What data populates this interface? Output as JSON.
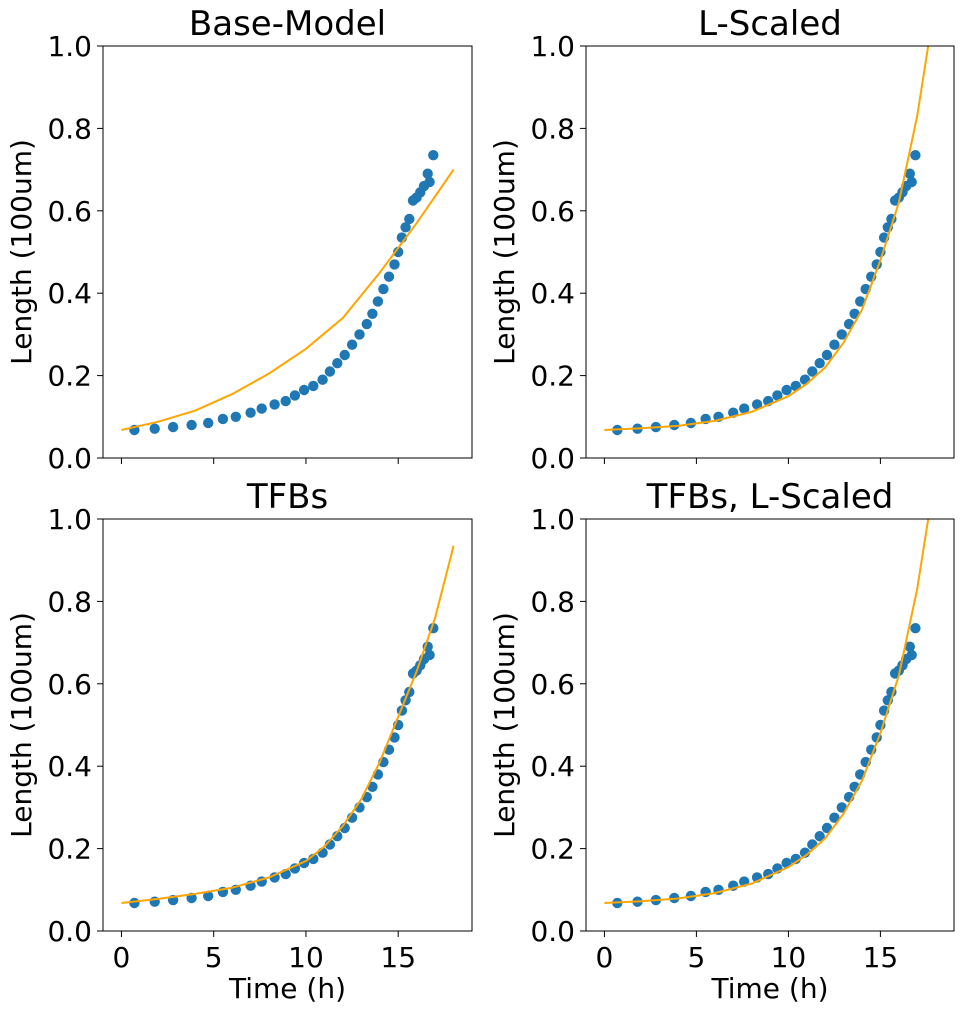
{
  "chart_data": [
    {
      "type": "scatter",
      "title": "Base-Model",
      "xlabel": "",
      "ylabel": "Length (100um)",
      "xlim": [
        -1,
        19
      ],
      "ylim": [
        0,
        1
      ],
      "xticks": [
        0,
        5,
        10,
        15
      ],
      "xtick_labels": [
        "",
        "",
        "",
        ""
      ],
      "yticks": [
        0.0,
        0.2,
        0.4,
        0.6,
        0.8,
        1.0
      ],
      "ytick_labels": [
        "0.0",
        "0.2",
        "0.4",
        "0.6",
        "0.8",
        "1.0"
      ],
      "series": [
        {
          "kind": "points",
          "color": "#1f77b4",
          "x": [
            0.7,
            1.8,
            2.8,
            3.8,
            4.7,
            5.5,
            6.2,
            7.0,
            7.6,
            8.3,
            8.9,
            9.4,
            9.9,
            10.4,
            10.9,
            11.3,
            11.7,
            12.1,
            12.5,
            12.9,
            13.3,
            13.6,
            13.9,
            14.2,
            14.5,
            14.8,
            15.0,
            15.2,
            15.4,
            15.6,
            15.8,
            16.0,
            16.2,
            16.4,
            16.6,
            16.7,
            16.9
          ],
          "y": [
            0.068,
            0.071,
            0.075,
            0.08,
            0.085,
            0.095,
            0.1,
            0.11,
            0.12,
            0.13,
            0.138,
            0.152,
            0.165,
            0.175,
            0.19,
            0.21,
            0.23,
            0.25,
            0.275,
            0.3,
            0.325,
            0.35,
            0.38,
            0.41,
            0.44,
            0.47,
            0.5,
            0.535,
            0.56,
            0.58,
            0.625,
            0.632,
            0.645,
            0.66,
            0.69,
            0.67,
            0.735
          ]
        },
        {
          "kind": "line",
          "color": "#ffa500",
          "x": [
            0,
            2,
            4,
            6,
            8,
            10,
            12,
            14,
            16,
            18
          ],
          "y": [
            0.068,
            0.088,
            0.115,
            0.155,
            0.205,
            0.265,
            0.34,
            0.45,
            0.57,
            0.7
          ]
        }
      ]
    },
    {
      "type": "scatter",
      "title": "L-Scaled",
      "xlabel": "",
      "ylabel": "Length (100um)",
      "xlim": [
        -1,
        19
      ],
      "ylim": [
        0,
        1
      ],
      "xticks": [
        0,
        5,
        10,
        15
      ],
      "xtick_labels": [
        "",
        "",
        "",
        ""
      ],
      "yticks": [
        0.0,
        0.2,
        0.4,
        0.6,
        0.8,
        1.0
      ],
      "ytick_labels": [
        "0.0",
        "0.2",
        "0.4",
        "0.6",
        "0.8",
        "1.0"
      ],
      "series": [
        {
          "kind": "points",
          "color": "#1f77b4",
          "x": [
            0.7,
            1.8,
            2.8,
            3.8,
            4.7,
            5.5,
            6.2,
            7.0,
            7.6,
            8.3,
            8.9,
            9.4,
            9.9,
            10.4,
            10.9,
            11.3,
            11.7,
            12.1,
            12.5,
            12.9,
            13.3,
            13.6,
            13.9,
            14.2,
            14.5,
            14.8,
            15.0,
            15.2,
            15.4,
            15.6,
            15.8,
            16.0,
            16.2,
            16.4,
            16.6,
            16.7,
            16.9
          ],
          "y": [
            0.068,
            0.071,
            0.075,
            0.08,
            0.085,
            0.095,
            0.1,
            0.11,
            0.12,
            0.13,
            0.138,
            0.152,
            0.165,
            0.175,
            0.19,
            0.21,
            0.23,
            0.25,
            0.275,
            0.3,
            0.325,
            0.35,
            0.38,
            0.41,
            0.44,
            0.47,
            0.5,
            0.535,
            0.56,
            0.58,
            0.625,
            0.632,
            0.645,
            0.66,
            0.69,
            0.67,
            0.735
          ]
        },
        {
          "kind": "line",
          "color": "#ffa500",
          "x": [
            0,
            2,
            4,
            6,
            8,
            10,
            11,
            12,
            13,
            14,
            15,
            16,
            17,
            17.6
          ],
          "y": [
            0.068,
            0.072,
            0.078,
            0.09,
            0.112,
            0.15,
            0.18,
            0.22,
            0.28,
            0.36,
            0.48,
            0.62,
            0.83,
            1.0
          ]
        }
      ]
    },
    {
      "type": "scatter",
      "title": "TFBs",
      "xlabel": "Time (h)",
      "ylabel": "Length (100um)",
      "xlim": [
        -1,
        19
      ],
      "ylim": [
        0,
        1
      ],
      "xticks": [
        0,
        5,
        10,
        15
      ],
      "xtick_labels": [
        "0",
        "5",
        "10",
        "15"
      ],
      "yticks": [
        0.0,
        0.2,
        0.4,
        0.6,
        0.8,
        1.0
      ],
      "ytick_labels": [
        "0.0",
        "0.2",
        "0.4",
        "0.6",
        "0.8",
        "1.0"
      ],
      "series": [
        {
          "kind": "points",
          "color": "#1f77b4",
          "x": [
            0.7,
            1.8,
            2.8,
            3.8,
            4.7,
            5.5,
            6.2,
            7.0,
            7.6,
            8.3,
            8.9,
            9.4,
            9.9,
            10.4,
            10.9,
            11.3,
            11.7,
            12.1,
            12.5,
            12.9,
            13.3,
            13.6,
            13.9,
            14.2,
            14.5,
            14.8,
            15.0,
            15.2,
            15.4,
            15.6,
            15.8,
            16.0,
            16.2,
            16.4,
            16.6,
            16.7,
            16.9
          ],
          "y": [
            0.068,
            0.071,
            0.075,
            0.08,
            0.085,
            0.095,
            0.1,
            0.11,
            0.12,
            0.13,
            0.138,
            0.152,
            0.165,
            0.175,
            0.19,
            0.21,
            0.23,
            0.25,
            0.275,
            0.3,
            0.325,
            0.35,
            0.38,
            0.41,
            0.44,
            0.47,
            0.5,
            0.535,
            0.56,
            0.58,
            0.625,
            0.632,
            0.645,
            0.66,
            0.69,
            0.67,
            0.735
          ]
        },
        {
          "kind": "line",
          "color": "#ffa500",
          "x": [
            0,
            2,
            4,
            6,
            8,
            10,
            11,
            12,
            13,
            14,
            15,
            16,
            17,
            18
          ],
          "y": [
            0.068,
            0.078,
            0.09,
            0.105,
            0.13,
            0.17,
            0.205,
            0.255,
            0.32,
            0.41,
            0.52,
            0.63,
            0.76,
            0.935
          ]
        }
      ]
    },
    {
      "type": "scatter",
      "title": "TFBs, L-Scaled",
      "xlabel": "Time (h)",
      "ylabel": "Length (100um)",
      "xlim": [
        -1,
        19
      ],
      "ylim": [
        0,
        1
      ],
      "xticks": [
        0,
        5,
        10,
        15
      ],
      "xtick_labels": [
        "0",
        "5",
        "10",
        "15"
      ],
      "yticks": [
        0.0,
        0.2,
        0.4,
        0.6,
        0.8,
        1.0
      ],
      "ytick_labels": [
        "0.0",
        "0.2",
        "0.4",
        "0.6",
        "0.8",
        "1.0"
      ],
      "series": [
        {
          "kind": "points",
          "color": "#1f77b4",
          "x": [
            0.7,
            1.8,
            2.8,
            3.8,
            4.7,
            5.5,
            6.2,
            7.0,
            7.6,
            8.3,
            8.9,
            9.4,
            9.9,
            10.4,
            10.9,
            11.3,
            11.7,
            12.1,
            12.5,
            12.9,
            13.3,
            13.6,
            13.9,
            14.2,
            14.5,
            14.8,
            15.0,
            15.2,
            15.4,
            15.6,
            15.8,
            16.0,
            16.2,
            16.4,
            16.6,
            16.7,
            16.9
          ],
          "y": [
            0.068,
            0.071,
            0.075,
            0.08,
            0.085,
            0.095,
            0.1,
            0.11,
            0.12,
            0.13,
            0.138,
            0.152,
            0.165,
            0.175,
            0.19,
            0.21,
            0.23,
            0.25,
            0.275,
            0.3,
            0.325,
            0.35,
            0.38,
            0.41,
            0.44,
            0.47,
            0.5,
            0.535,
            0.56,
            0.58,
            0.625,
            0.632,
            0.645,
            0.66,
            0.69,
            0.67,
            0.735
          ]
        },
        {
          "kind": "line",
          "color": "#ffa500",
          "x": [
            0,
            2,
            4,
            6,
            8,
            10,
            11,
            12,
            13,
            14,
            15,
            16,
            17,
            17.6
          ],
          "y": [
            0.068,
            0.072,
            0.079,
            0.092,
            0.115,
            0.155,
            0.185,
            0.225,
            0.285,
            0.365,
            0.48,
            0.62,
            0.83,
            1.0
          ]
        }
      ]
    }
  ]
}
